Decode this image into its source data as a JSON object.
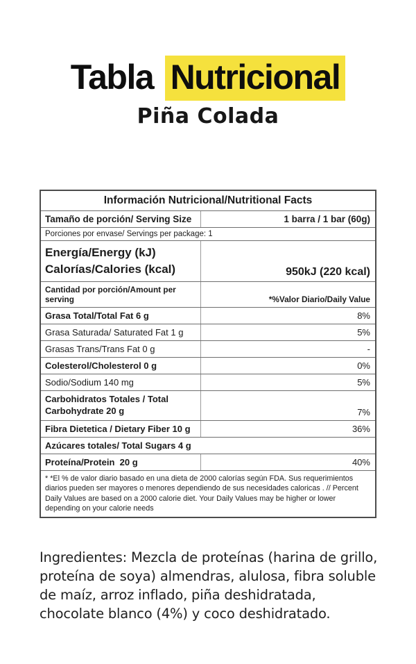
{
  "header": {
    "title_part1": "Tabla",
    "title_part2": "Nutricional",
    "subtitle": "Piña Colada",
    "highlight_color": "#F5E13D"
  },
  "table": {
    "title": "Información Nutricional/Nutritional Facts",
    "serving_size": {
      "label": "Tamaño de porción/ Serving Size",
      "value": "1 barra / 1 bar (60g)"
    },
    "servings_per_package": "Porciones por envase/ Servings per package: 1",
    "energy": {
      "label_line1": "Energía/Energy (kJ)",
      "label_line2": "Calorías/Calories (kcal)",
      "value": "950kJ (220 kcal)"
    },
    "column_headers": {
      "left": "Cantidad por porción/Amount per serving",
      "right": "*%Valor Diario/Daily Value"
    },
    "rows": [
      {
        "label": "Grasa Total/Total Fat 6 g",
        "value": "8%"
      },
      {
        "label": "Grasa Saturada/ Saturated Fat 1 g",
        "value": "5%"
      },
      {
        "label": "Grasas Trans/Trans Fat 0 g",
        "value": "-"
      },
      {
        "label": "Colesterol/Cholesterol 0 g",
        "value": "0%"
      },
      {
        "label": "Sodio/Sodium 140 mg",
        "value": "5%"
      },
      {
        "label": "Carbohidratos Totales / Total Carbohydrate 20 g",
        "value": "7%"
      },
      {
        "label": "Fibra Dietetica / Dietary Fiber 10 g",
        "value": "36%"
      },
      {
        "label": "Azúcares totales/ Total Sugars 4 g",
        "value": ""
      },
      {
        "label": "Proteína/Protein  20 g",
        "value": "40%"
      }
    ],
    "footnote": "* *El % de valor diario basado en una dieta de 2000 calorías según FDA. Sus requerimientos diarios pueden ser mayores o menores dependiendo de sus necesidades caloricas . // Percent Daily Values are based on a 2000 calorie diet. Your Daily Values may be higher or lower depending on your calorie needs"
  },
  "ingredients": {
    "text": "Ingredientes: Mezcla de proteínas (harina de grillo, proteína de soya) almendras, alulosa, fibra soluble de maíz, arroz inflado, piña deshidratada, chocolate blanco (4%) y coco deshidratado."
  }
}
